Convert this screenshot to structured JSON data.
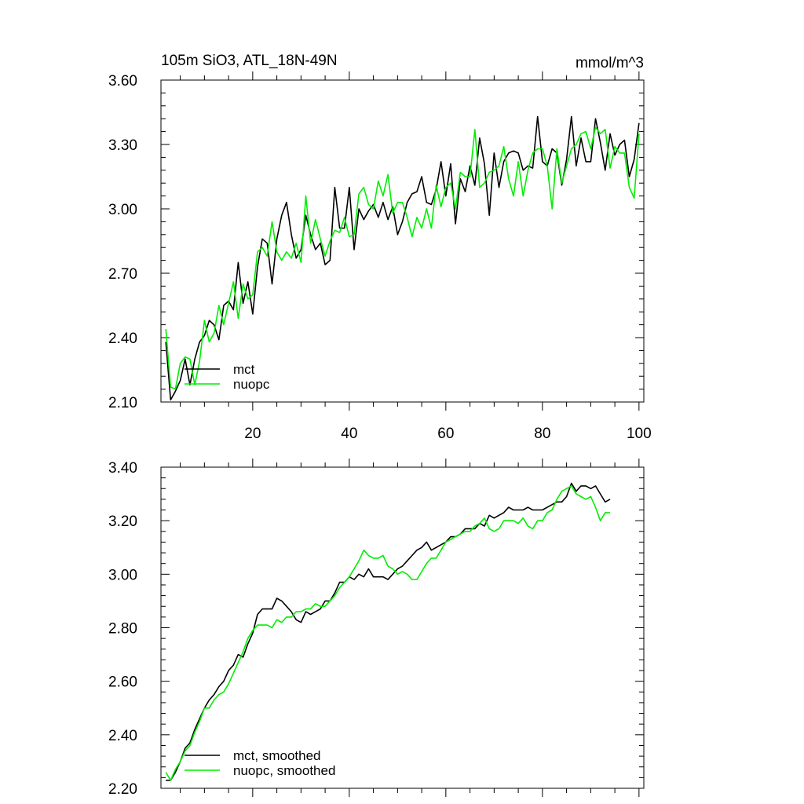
{
  "chart_data": [
    {
      "type": "line",
      "title": "105m SiO3, ATL_18N-49N",
      "units": "mmol/m^3",
      "xlim": [
        1,
        101
      ],
      "ylim": [
        2.1,
        3.6
      ],
      "x_ticks": [
        20,
        40,
        60,
        80,
        100
      ],
      "y_ticks": [
        "2.10",
        "2.40",
        "2.70",
        "3.00",
        "3.30",
        "3.60"
      ],
      "legend_position": "bottom-left",
      "grid": false,
      "series": [
        {
          "name": "mct",
          "color": "#000000",
          "values": [
            2.38,
            2.11,
            2.15,
            2.2,
            2.3,
            2.18,
            2.3,
            2.38,
            2.41,
            2.48,
            2.46,
            2.39,
            2.55,
            2.57,
            2.53,
            2.75,
            2.56,
            2.66,
            2.51,
            2.73,
            2.86,
            2.84,
            2.65,
            2.86,
            2.97,
            3.03,
            2.88,
            2.77,
            2.81,
            2.97,
            2.88,
            2.81,
            2.84,
            2.74,
            2.76,
            3.1,
            2.91,
            2.91,
            3.1,
            2.81,
            3.0,
            2.95,
            2.99,
            3.02,
            2.96,
            3.03,
            2.95,
            3.01,
            2.88,
            2.94,
            3.03,
            3.07,
            3.08,
            3.15,
            3.03,
            3.02,
            3.09,
            3.22,
            3.06,
            3.21,
            2.93,
            3.14,
            3.08,
            3.2,
            3.11,
            3.33,
            3.21,
            2.97,
            3.26,
            3.1,
            3.22,
            3.26,
            3.27,
            3.26,
            3.18,
            3.2,
            3.19,
            3.43,
            3.22,
            3.2,
            3.28,
            3.26,
            3.11,
            3.23,
            3.43,
            3.2,
            3.33,
            3.22,
            3.22,
            3.42,
            3.31,
            3.18,
            3.35,
            3.25,
            3.3,
            3.32,
            3.15,
            3.23,
            3.4
          ]
        },
        {
          "name": "nuopc",
          "color": "#00ee00",
          "values": [
            2.44,
            2.17,
            2.16,
            2.28,
            2.31,
            2.3,
            2.18,
            2.29,
            2.48,
            2.38,
            2.42,
            2.55,
            2.46,
            2.56,
            2.66,
            2.49,
            2.65,
            2.58,
            2.6,
            2.8,
            2.82,
            2.78,
            2.94,
            2.8,
            2.76,
            2.8,
            2.77,
            2.84,
            2.75,
            3.06,
            2.84,
            2.95,
            2.86,
            2.78,
            2.85,
            2.9,
            2.89,
            2.96,
            2.87,
            2.88,
            3.07,
            3.1,
            3.02,
            3.0,
            3.13,
            3.06,
            3.16,
            2.98,
            3.03,
            3.03,
            2.96,
            2.87,
            2.96,
            2.91,
            3.0,
            2.91,
            3.11,
            3.01,
            3.1,
            3.12,
            3.0,
            3.17,
            3.15,
            3.15,
            3.37,
            3.1,
            3.12,
            3.17,
            3.18,
            3.2,
            3.29,
            3.14,
            3.06,
            3.22,
            3.06,
            3.18,
            3.26,
            3.28,
            3.28,
            3.2,
            3.0,
            3.28,
            3.12,
            3.2,
            3.28,
            3.3,
            3.35,
            3.36,
            3.28,
            3.38,
            3.35,
            3.37,
            3.19,
            3.29,
            3.26,
            3.26,
            3.1,
            3.05,
            3.35
          ]
        }
      ]
    },
    {
      "type": "line",
      "title": "",
      "xlim": [
        1,
        101
      ],
      "ylim": [
        2.2,
        3.4
      ],
      "x_ticks": [
        20,
        40,
        60,
        80,
        100
      ],
      "x_tick_labels_shown": false,
      "y_ticks": [
        "2.20",
        "2.40",
        "2.60",
        "2.80",
        "3.00",
        "3.20",
        "3.40"
      ],
      "legend_position": "bottom-left",
      "grid": false,
      "series": [
        {
          "name": "mct, smoothed",
          "color": "#000000",
          "values": [
            2.23,
            2.23,
            2.26,
            2.3,
            2.35,
            2.37,
            2.42,
            2.46,
            2.5,
            2.53,
            2.55,
            2.58,
            2.6,
            2.64,
            2.66,
            2.7,
            2.69,
            2.74,
            2.78,
            2.85,
            2.87,
            2.87,
            2.87,
            2.91,
            2.9,
            2.88,
            2.86,
            2.83,
            2.82,
            2.86,
            2.85,
            2.86,
            2.87,
            2.9,
            2.9,
            2.93,
            2.97,
            2.97,
            2.99,
            2.98,
            3.0,
            2.99,
            3.02,
            2.99,
            2.99,
            2.99,
            2.98,
            3.0,
            3.02,
            3.03,
            3.05,
            3.07,
            3.09,
            3.1,
            3.12,
            3.09,
            3.1,
            3.11,
            3.12,
            3.14,
            3.14,
            3.15,
            3.17,
            3.17,
            3.17,
            3.19,
            3.18,
            3.22,
            3.21,
            3.22,
            3.23,
            3.25,
            3.24,
            3.24,
            3.24,
            3.25,
            3.24,
            3.24,
            3.24,
            3.25,
            3.26,
            3.27,
            3.27,
            3.29,
            3.34,
            3.31,
            3.33,
            3.33,
            3.32,
            3.33,
            3.3,
            3.27,
            3.28
          ]
        },
        {
          "name": "nuopc, smoothed",
          "color": "#00ee00",
          "values": [
            2.26,
            2.23,
            2.27,
            2.3,
            2.34,
            2.36,
            2.41,
            2.45,
            2.5,
            2.5,
            2.53,
            2.55,
            2.56,
            2.59,
            2.63,
            2.67,
            2.71,
            2.76,
            2.79,
            2.81,
            2.81,
            2.81,
            2.8,
            2.83,
            2.82,
            2.84,
            2.84,
            2.86,
            2.86,
            2.87,
            2.87,
            2.89,
            2.88,
            2.88,
            2.9,
            2.92,
            2.95,
            2.97,
            2.99,
            3.02,
            3.05,
            3.09,
            3.07,
            3.06,
            3.06,
            3.07,
            3.03,
            3.02,
            3.0,
            3.01,
            3.0,
            2.98,
            2.98,
            3.01,
            3.04,
            3.06,
            3.06,
            3.09,
            3.12,
            3.13,
            3.14,
            3.15,
            3.16,
            3.16,
            3.18,
            3.19,
            3.21,
            3.17,
            3.16,
            3.17,
            3.2,
            3.2,
            3.2,
            3.19,
            3.21,
            3.18,
            3.17,
            3.2,
            3.2,
            3.23,
            3.24,
            3.28,
            3.31,
            3.32,
            3.33,
            3.3,
            3.29,
            3.28,
            3.29,
            3.25,
            3.2,
            3.23,
            3.23
          ]
        }
      ]
    }
  ]
}
